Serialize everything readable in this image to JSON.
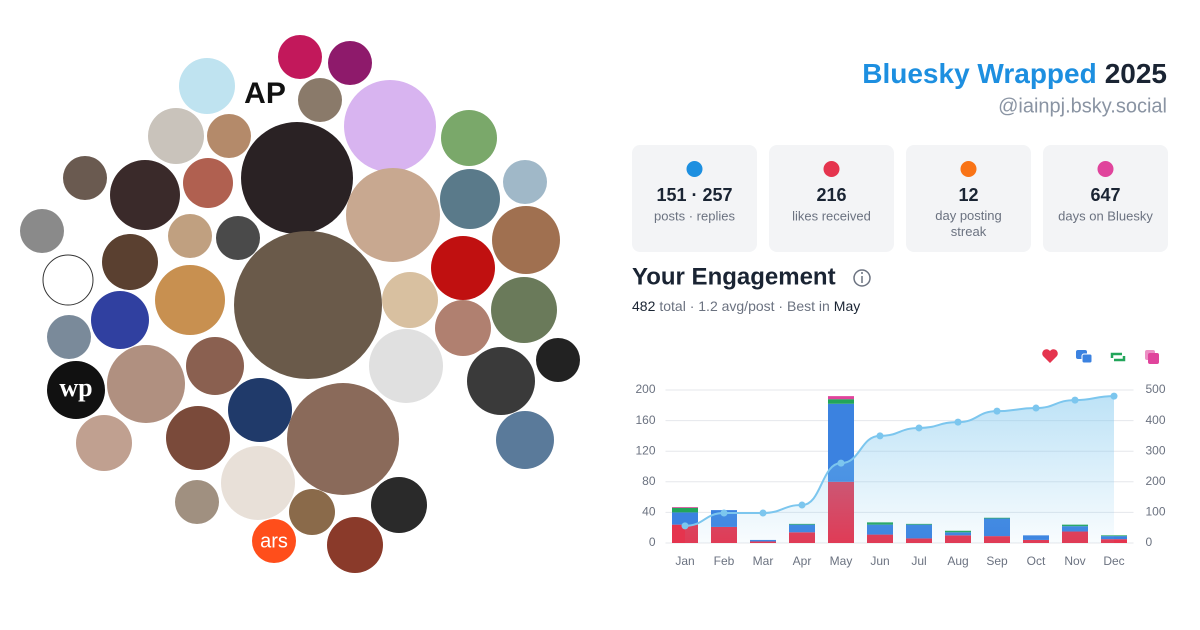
{
  "header": {
    "title": "Bluesky Wrapped",
    "year": "2025",
    "handle": "@iainpj.bsky.social"
  },
  "stats": [
    {
      "value": "151 · 257",
      "label": "posts · replies"
    },
    {
      "value": "216",
      "label": "likes received"
    },
    {
      "value": "12",
      "label": "day posting streak"
    },
    {
      "value": "647",
      "label": "days on Bluesky"
    }
  ],
  "engagement": {
    "heading": "Your Engagement",
    "total": "482",
    "summary": "total · 1.2 avg/post · Best in",
    "best": "May"
  },
  "avatars": {
    "labels": [
      "AP",
      "ars",
      "wp"
    ]
  },
  "chart_data": {
    "type": "bar",
    "stacked": true,
    "categories": [
      "Jan",
      "Feb",
      "Mar",
      "Apr",
      "May",
      "Jun",
      "Jul",
      "Aug",
      "Sep",
      "Oct",
      "Nov",
      "Dec"
    ],
    "series": [
      {
        "color": "#e5344e",
        "values": [
          24,
          21,
          2,
          14,
          80,
          11,
          6,
          10,
          9,
          4,
          15,
          5
        ]
      },
      {
        "color": "#3b82e0",
        "values": [
          16,
          22,
          2,
          10,
          102,
          13,
          18,
          4,
          23,
          6,
          7,
          4
        ]
      },
      {
        "color": "#22a55a",
        "values": [
          6,
          0,
          0,
          1,
          6,
          3,
          1,
          2,
          1,
          0,
          2,
          1
        ]
      },
      {
        "color": "#e0449c",
        "values": [
          1,
          0,
          0,
          0,
          4,
          0,
          0,
          0,
          0,
          0,
          0,
          0
        ]
      },
      {
        "type": "line",
        "axis": "y2",
        "color": "#7cc6ee",
        "values": [
          56,
          98,
          98,
          124,
          261,
          350,
          376,
          395,
          431,
          441,
          467,
          480
        ]
      }
    ],
    "ylim": [
      0,
      200
    ],
    "yticks": [
      0,
      40,
      80,
      120,
      160,
      200
    ],
    "y2lim": [
      0,
      500
    ],
    "y2ticks": [
      0,
      100,
      200,
      300,
      400,
      500
    ],
    "grid": true
  }
}
